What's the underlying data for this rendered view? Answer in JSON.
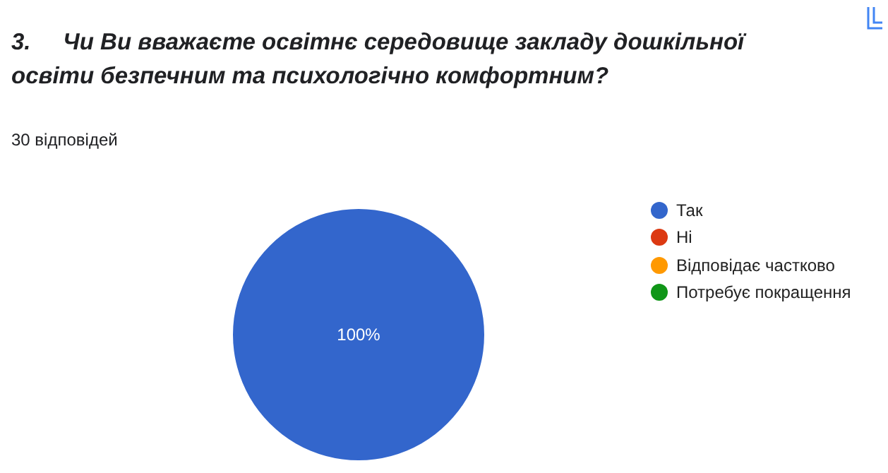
{
  "chart_data": {
    "type": "pie",
    "title": "3.     Чи Ви вважаєте освітнє середовище закладу дошкільної освіти безпечним та психологічно комфортним?",
    "subtitle": "30 відповідей",
    "categories": [
      "Так",
      "Ні",
      "Відповідає частково",
      "Потребує покращення"
    ],
    "values": [
      100,
      0,
      0,
      0
    ],
    "colors": [
      "#3366cc",
      "#dc3912",
      "#ff9900",
      "#109618"
    ],
    "value_labels": [
      "100%",
      null,
      null,
      null
    ],
    "legend": "right"
  }
}
